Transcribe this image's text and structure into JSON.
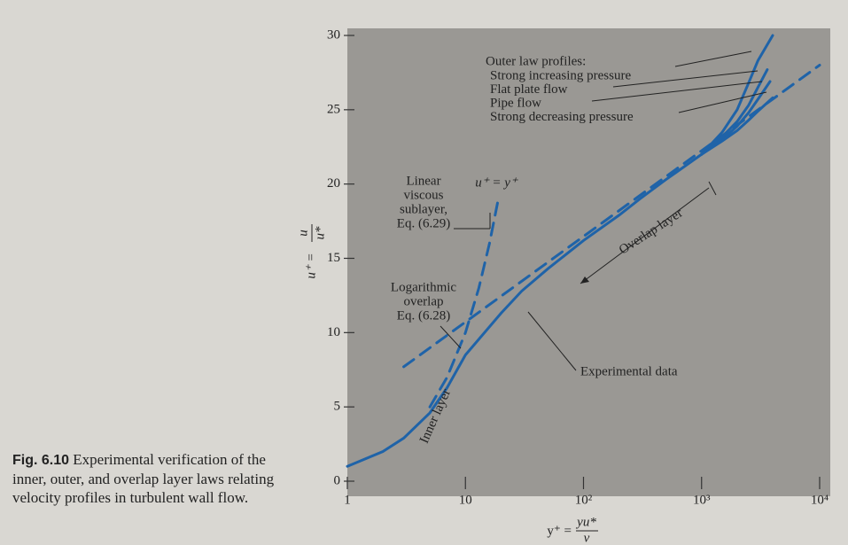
{
  "chart_data": {
    "type": "line",
    "caption_label": "Fig. 6.10",
    "caption": "Experimental verification of the inner, outer, and overlap layer laws relating velocity profiles in turbulent wall flow.",
    "xlabel": {
      "lhs": "y⁺ =",
      "num": "yu*",
      "den": "ν"
    },
    "ylabel": {
      "lhs": "u⁺ =",
      "num": "u",
      "den": "u*"
    },
    "xscale": "log",
    "xlim": [
      1,
      10000
    ],
    "ylim": [
      0,
      30
    ],
    "xticks": [
      1,
      10,
      {
        "value": 100,
        "label": "10²"
      },
      {
        "value": 1000,
        "label": "10³"
      },
      {
        "value": 10000,
        "label": "10⁴"
      }
    ],
    "yticks": [
      0,
      5,
      10,
      15,
      20,
      25,
      30
    ],
    "outer_label": "Outer law profiles:",
    "annotations": [
      {
        "lines": [
          "Linear",
          "viscous",
          "sublayer,",
          "Eq. (6.29)"
        ]
      },
      {
        "lines": [
          "Logarithmic",
          "overlap",
          "Eq. (6.28)"
        ]
      },
      {
        "lines": [
          "Overlap layer"
        ]
      },
      {
        "lines": [
          "Inner layer"
        ]
      }
    ],
    "series": [
      {
        "name": "Experimental data",
        "color": "#1f63a8",
        "dash": false,
        "x": [
          1,
          2,
          3,
          5,
          7,
          10,
          20,
          30,
          50,
          100,
          200,
          300,
          500,
          1000
        ],
        "values": [
          1,
          2,
          2.9,
          4.6,
          6.3,
          8.5,
          11.3,
          12.8,
          14.3,
          16.2,
          17.9,
          19,
          20.3,
          22
        ]
      },
      {
        "name": "u⁺ = y⁺",
        "color": "#1f63a8",
        "dash": true,
        "x": [
          5,
          7,
          10,
          13,
          16,
          19
        ],
        "values": [
          5,
          7,
          10,
          13,
          16,
          19
        ]
      },
      {
        "color": "#1f63a8",
        "dash": true,
        "x": [
          3,
          10000
        ],
        "values": [
          7.7,
          28
        ]
      },
      {
        "name": "Strong increasing pressure",
        "color": "#1f63a8",
        "dash": false,
        "x": [
          1000,
          1500,
          2000,
          2500,
          3000,
          4000
        ],
        "values": [
          22,
          23.5,
          25,
          26.8,
          28.3,
          30
        ]
      },
      {
        "name": "Flat plate flow",
        "color": "#1f63a8",
        "dash": false,
        "x": [
          1000,
          1500,
          2000,
          2500,
          3000,
          3600
        ],
        "values": [
          22,
          23.2,
          24.2,
          25.3,
          26.5,
          27.7
        ]
      },
      {
        "name": "Pipe flow",
        "color": "#1f63a8",
        "dash": false,
        "x": [
          1000,
          1500,
          2000,
          2500,
          3000,
          3800
        ],
        "values": [
          22,
          23,
          23.9,
          24.8,
          25.7,
          26.9
        ]
      },
      {
        "name": "Strong decreasing pressure",
        "color": "#1f63a8",
        "dash": false,
        "x": [
          1000,
          1500,
          2000,
          2500,
          3000,
          4000
        ],
        "values": [
          22,
          22.9,
          23.6,
          24.3,
          24.9,
          25.8
        ]
      }
    ]
  }
}
